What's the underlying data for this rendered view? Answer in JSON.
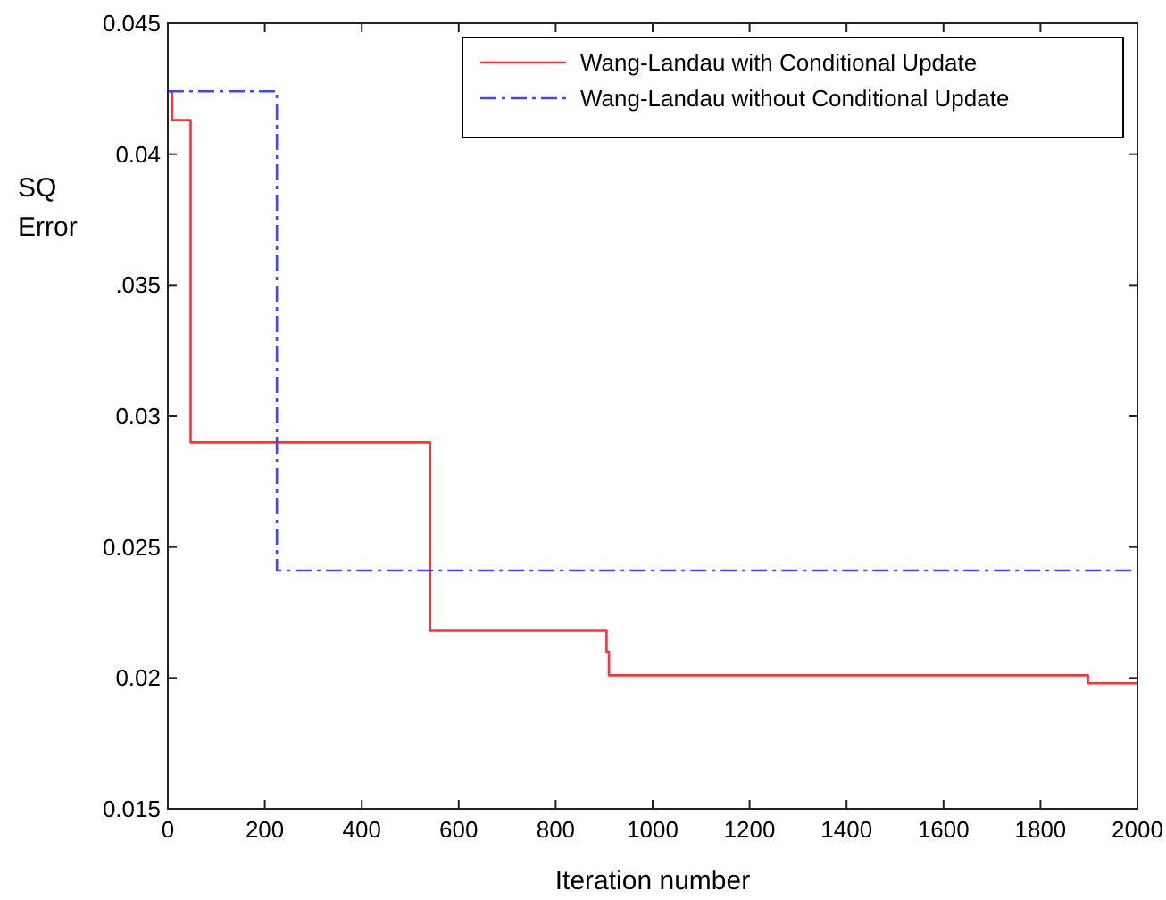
{
  "chart_data": {
    "type": "step",
    "xlabel": "Iteration number",
    "ylabel": "SQ Error",
    "xlim": [
      0,
      2000
    ],
    "ylim": [
      0.015,
      0.045
    ],
    "xticks": [
      0,
      200,
      400,
      600,
      800,
      1000,
      1200,
      1400,
      1600,
      1800,
      2000
    ],
    "yticks": [
      0.015,
      0.02,
      0.025,
      0.03,
      {
        "value": 0.035,
        "label": ".035"
      },
      0.04,
      0.045
    ],
    "grid": false,
    "legend": "top right",
    "marker": "none",
    "series": [
      {
        "name": "Wang-Landau with Conditional Update",
        "color": "#ff3333",
        "line_style": "solid",
        "x": [
          0,
          9,
          47,
          541,
          905,
          910,
          1898,
          2000
        ],
        "values": [
          0.0424,
          0.0413,
          0.029,
          0.0218,
          0.021,
          0.0201,
          0.0198,
          0.0198
        ]
      },
      {
        "name": "Wang-Landau without Conditional Update",
        "color": "#4444ff",
        "line_style": "dashed",
        "x": [
          0,
          225,
          2000
        ],
        "values": [
          0.0424,
          0.0241,
          0.0241
        ]
      }
    ]
  }
}
